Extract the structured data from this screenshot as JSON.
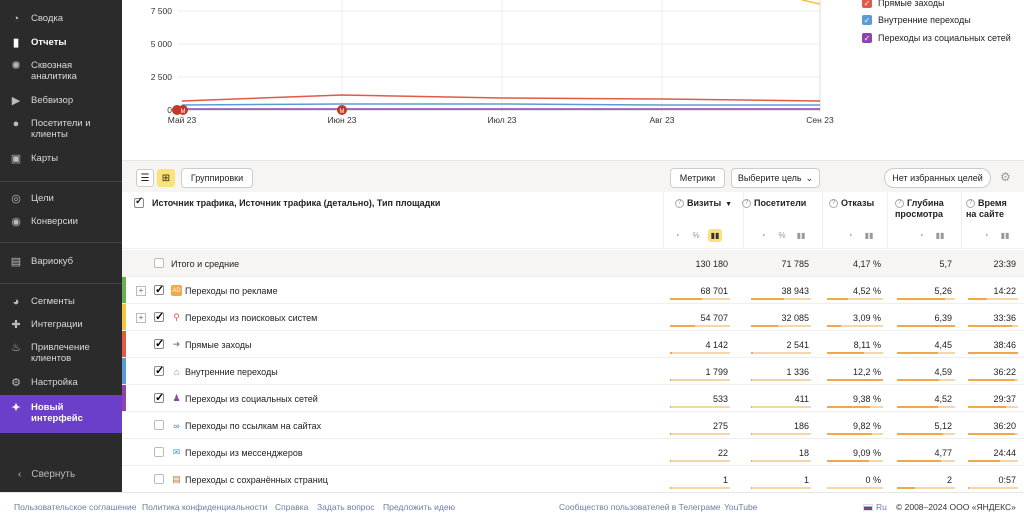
{
  "sidebar": {
    "items": [
      {
        "label": "Сводка",
        "icon": "dashboard-icon"
      },
      {
        "label": "Отчеты",
        "icon": "bar-chart-icon",
        "active": true
      },
      {
        "label": "Сквозная аналитика",
        "icon": "globe-icon"
      },
      {
        "label": "Вебвизор",
        "icon": "play-icon"
      },
      {
        "label": "Посетители и клиенты",
        "icon": "person-icon"
      },
      {
        "label": "Карты",
        "icon": "map-icon"
      },
      {
        "label": "Цели",
        "icon": "target-icon"
      },
      {
        "label": "Конверсии",
        "icon": "conversion-icon"
      },
      {
        "label": "Вариокуб",
        "icon": "cube-icon"
      },
      {
        "label": "Сегменты",
        "icon": "pie-icon"
      },
      {
        "label": "Интеграции",
        "icon": "puzzle-icon"
      },
      {
        "label": "Привлечение клиентов",
        "icon": "fire-icon"
      },
      {
        "label": "Настройка",
        "icon": "gear-icon"
      },
      {
        "label": "Новый интерфейс",
        "icon": "sparkle-icon"
      }
    ],
    "collapse_label": "Свернуть"
  },
  "chart": {
    "y_ticks": [
      "7 500",
      "5 000",
      "2 500",
      "0"
    ],
    "x_ticks": [
      "Май 23",
      "Июн 23",
      "Июл 23",
      "Авг 23",
      "Сен 23"
    ],
    "event_markers": [
      "M",
      "M"
    ]
  },
  "legend": [
    {
      "label": "Прямые заходы",
      "color": "#e05a47"
    },
    {
      "label": "Внутренние переходы",
      "color": "#5b9bd5"
    },
    {
      "label": "Переходы из социальных сетей",
      "color": "#8e44ad"
    }
  ],
  "toolbar": {
    "group_label": "Группировки",
    "metrics_label": "Метрики",
    "goal_label": "Выберите цель",
    "favorites_label": "Нет избранных целей"
  },
  "table": {
    "dimension_header": "Источник трафика, Источник трафика (детально), Тип площадки",
    "columns": [
      "Визиты",
      "Посетители",
      "Отказы",
      "Глубина просмотра",
      "Время на сайте"
    ],
    "total": {
      "label": "Итого и средние",
      "values": [
        "130 180",
        "71 785",
        "4,17 %",
        "5,7",
        "23:39"
      ]
    },
    "rows": [
      {
        "label": "Переходы по рекламе",
        "values": [
          "68 701",
          "38 943",
          "4,52 %",
          "5,26",
          "14:22"
        ],
        "checked": true,
        "color": "#6ab04c",
        "icon": "ad-icon"
      },
      {
        "label": "Переходы из поисковых систем",
        "values": [
          "54 707",
          "32 085",
          "3,09 %",
          "6,39",
          "33:36"
        ],
        "checked": true,
        "color": "#f5c242",
        "icon": "search-icon"
      },
      {
        "label": "Прямые заходы",
        "values": [
          "4 142",
          "2 541",
          "8,11 %",
          "4,45",
          "38:46"
        ],
        "checked": true,
        "color": "#e05a47",
        "icon": "direct-icon"
      },
      {
        "label": "Внутренние переходы",
        "values": [
          "1 799",
          "1 336",
          "12,2 %",
          "4,59",
          "36:22"
        ],
        "checked": true,
        "color": "#5b9bd5",
        "icon": "home-icon"
      },
      {
        "label": "Переходы из социальных сетей",
        "values": [
          "533",
          "411",
          "9,38 %",
          "4,52",
          "29:37"
        ],
        "checked": true,
        "color": "#8e44ad",
        "icon": "social-icon"
      },
      {
        "label": "Переходы по ссылкам на сайтах",
        "values": [
          "275",
          "186",
          "9,82 %",
          "5,12",
          "36:20"
        ],
        "checked": false,
        "color": "",
        "icon": "link-icon"
      },
      {
        "label": "Переходы из мессенджеров",
        "values": [
          "22",
          "18",
          "9,09 %",
          "4,77",
          "24:44"
        ],
        "checked": false,
        "color": "",
        "icon": "messenger-icon"
      },
      {
        "label": "Переходы с сохранённых страниц",
        "values": [
          "1",
          "1",
          "0 %",
          "2",
          "0:57"
        ],
        "checked": false,
        "color": "",
        "icon": "page-icon"
      }
    ],
    "visits_share": [
      1,
      0.528,
      0.42,
      0.032,
      0.014,
      0.004,
      0.002,
      0.0002,
      1e-05
    ],
    "visitors_share": [
      1,
      0.542,
      0.447,
      0.035,
      0.019,
      0.006,
      0.003,
      0.0003,
      1e-05
    ],
    "bounce_share": [
      0.34,
      0.37,
      0.25,
      0.66,
      1.0,
      0.77,
      0.8,
      0.75,
      0.0
    ],
    "depth_share": [
      0.89,
      0.82,
      1.0,
      0.7,
      0.72,
      0.71,
      0.8,
      0.75,
      0.31
    ],
    "time_share": [
      0.61,
      0.37,
      0.87,
      1.0,
      0.94,
      0.76,
      0.94,
      0.64,
      0.02
    ]
  },
  "footer": {
    "links": [
      "Пользовательское соглашение",
      "Политика конфиденциальности",
      "Справка",
      "Задать вопрос",
      "Предложить идею",
      "Сообщество пользователей в Телеграме",
      "YouTube"
    ],
    "lang": "Ru",
    "copyright": "© 2008–2024 ООО «ЯНДЕКС»"
  }
}
